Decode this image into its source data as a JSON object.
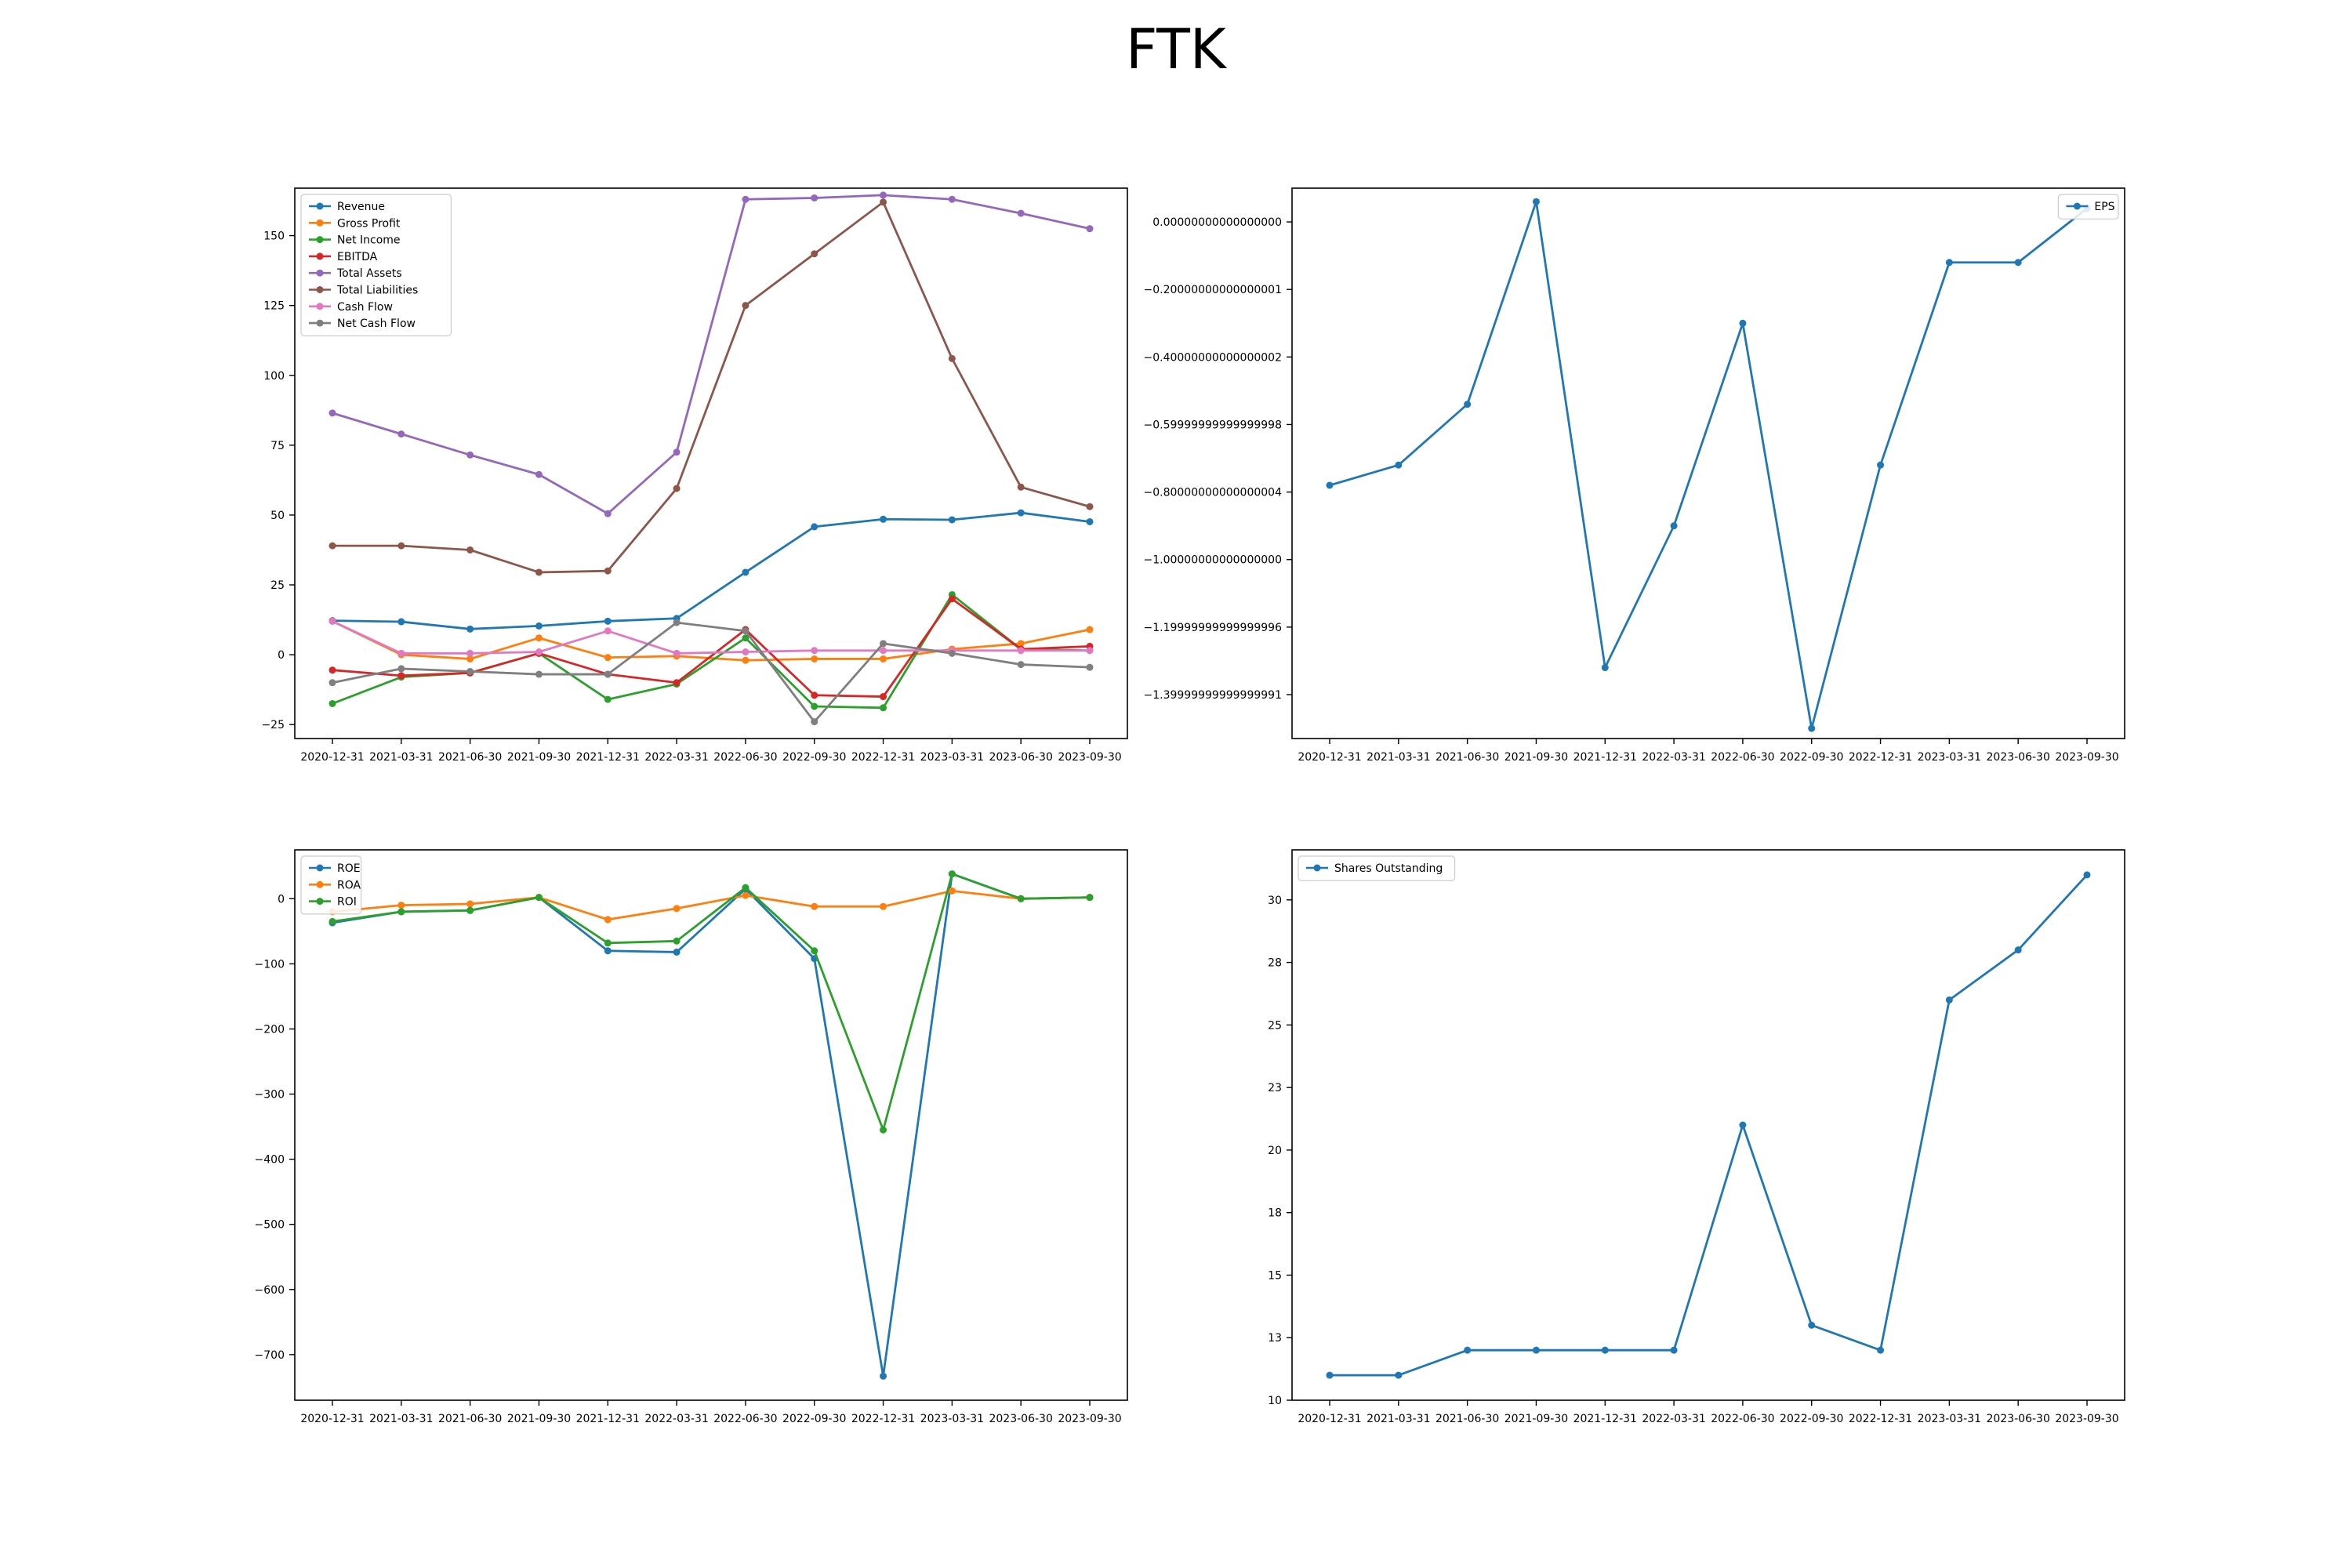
{
  "figure": {
    "title": "FTK"
  },
  "chart_data": [
    {
      "type": "line",
      "id": "financials",
      "x": [
        "2020-12-31",
        "2021-03-31",
        "2021-06-30",
        "2021-09-30",
        "2021-12-31",
        "2022-03-31",
        "2022-06-30",
        "2022-09-30",
        "2022-12-31",
        "2023-03-31",
        "2023-06-30",
        "2023-09-30"
      ],
      "ylim": [
        -30,
        167
      ],
      "yticks": [
        -25,
        0,
        25,
        50,
        75,
        100,
        125,
        150
      ],
      "legend": "top-left",
      "series": [
        {
          "name": "Revenue",
          "color": "#1f77b4",
          "values": [
            12.2,
            11.8,
            9.2,
            10.3,
            12.0,
            13.0,
            29.5,
            45.8,
            48.5,
            48.3,
            50.8,
            47.6
          ]
        },
        {
          "name": "Gross Profit",
          "color": "#ff7f0e",
          "values": [
            12.0,
            0.0,
            -1.5,
            6.0,
            -1.0,
            -0.5,
            -2.0,
            -1.5,
            -1.5,
            2.0,
            4.0,
            9.0
          ]
        },
        {
          "name": "Net Income",
          "color": "#2ca02c",
          "values": [
            -17.5,
            -8.0,
            -6.5,
            0.5,
            -16.0,
            -10.5,
            6.0,
            -18.5,
            -19.0,
            21.5,
            2.0,
            1.5
          ]
        },
        {
          "name": "EBITDA",
          "color": "#d62728",
          "values": [
            -5.5,
            -7.5,
            -6.5,
            0.5,
            -7.0,
            -10.0,
            9.0,
            -14.5,
            -15.0,
            20.0,
            2.0,
            3.0
          ]
        },
        {
          "name": "Total Assets",
          "color": "#9467bd",
          "values": [
            86.5,
            79.0,
            71.5,
            64.5,
            50.5,
            72.5,
            163.0,
            163.5,
            164.5,
            163.0,
            158.0,
            152.5
          ]
        },
        {
          "name": "Total Liabilities",
          "color": "#8c564b",
          "values": [
            39.0,
            39.0,
            37.5,
            29.5,
            30.0,
            59.5,
            125.0,
            143.5,
            162.0,
            106.0,
            60.0,
            53.0
          ]
        },
        {
          "name": "Cash Flow",
          "color": "#e377c2",
          "values": [
            12.0,
            0.5,
            0.5,
            1.0,
            8.5,
            0.5,
            1.0,
            1.5,
            1.5,
            1.5,
            1.5,
            1.5
          ]
        },
        {
          "name": "Net Cash Flow",
          "color": "#7f7f7f",
          "values": [
            -10.0,
            -5.0,
            -6.0,
            -7.0,
            -7.0,
            11.5,
            8.5,
            -24.0,
            4.0,
            0.5,
            -3.5,
            -4.5
          ]
        }
      ]
    },
    {
      "type": "line",
      "id": "eps",
      "x": [
        "2020-12-31",
        "2021-03-31",
        "2021-06-30",
        "2021-09-30",
        "2021-12-31",
        "2022-03-31",
        "2022-06-30",
        "2022-09-30",
        "2022-12-31",
        "2023-03-31",
        "2023-06-30",
        "2023-09-30"
      ],
      "ylim": [
        -1.53,
        0.1
      ],
      "yticks": [
        -1.4,
        -1.2,
        -1.0,
        -0.8,
        -0.6,
        -0.4,
        -0.2,
        0.0
      ],
      "legend": "top-right",
      "series": [
        {
          "name": "EPS",
          "color": "#1f77b4",
          "values": [
            -0.78,
            -0.72,
            -0.54,
            0.06,
            -1.32,
            -0.9,
            -0.3,
            -1.5,
            -0.72,
            -0.12,
            -0.12,
            0.04
          ]
        }
      ]
    },
    {
      "type": "line",
      "id": "returns",
      "x": [
        "2020-12-31",
        "2021-03-31",
        "2021-06-30",
        "2021-09-30",
        "2021-12-31",
        "2022-03-31",
        "2022-06-30",
        "2022-09-30",
        "2022-12-31",
        "2023-03-31",
        "2023-06-30",
        "2023-09-30"
      ],
      "ylim": [
        -770,
        75
      ],
      "yticks": [
        -700,
        -600,
        -500,
        -400,
        -300,
        -200,
        -100,
        0
      ],
      "legend": "top-left",
      "series": [
        {
          "name": "ROE",
          "color": "#1f77b4",
          "values": [
            -37,
            -20,
            -18,
            2,
            -80,
            -82,
            15,
            -92,
            -733,
            38,
            0,
            2
          ]
        },
        {
          "name": "ROA",
          "color": "#ff7f0e",
          "values": [
            -20,
            -10,
            -8,
            2,
            -32,
            -15,
            5,
            -12,
            -12,
            12,
            0,
            2
          ]
        },
        {
          "name": "ROI",
          "color": "#2ca02c",
          "values": [
            -35,
            -20,
            -18,
            2,
            -68,
            -65,
            17,
            -80,
            -355,
            38,
            0,
            2
          ]
        }
      ]
    },
    {
      "type": "line",
      "id": "shares",
      "x": [
        "2020-12-31",
        "2021-03-31",
        "2021-06-30",
        "2021-09-30",
        "2021-12-31",
        "2022-03-31",
        "2022-06-30",
        "2022-09-30",
        "2022-12-31",
        "2023-03-31",
        "2023-06-30",
        "2023-09-30"
      ],
      "ylim": [
        10.0,
        32.0
      ],
      "yticks": [
        10.0,
        12.5,
        15.0,
        17.5,
        20.0,
        22.5,
        25.0,
        27.5,
        30.0
      ],
      "legend": "top-left",
      "series": [
        {
          "name": "Shares Outstanding",
          "color": "#1f77b4",
          "values": [
            11,
            11,
            12,
            12,
            12,
            12,
            21,
            13,
            12,
            26,
            28,
            31
          ]
        }
      ]
    }
  ]
}
